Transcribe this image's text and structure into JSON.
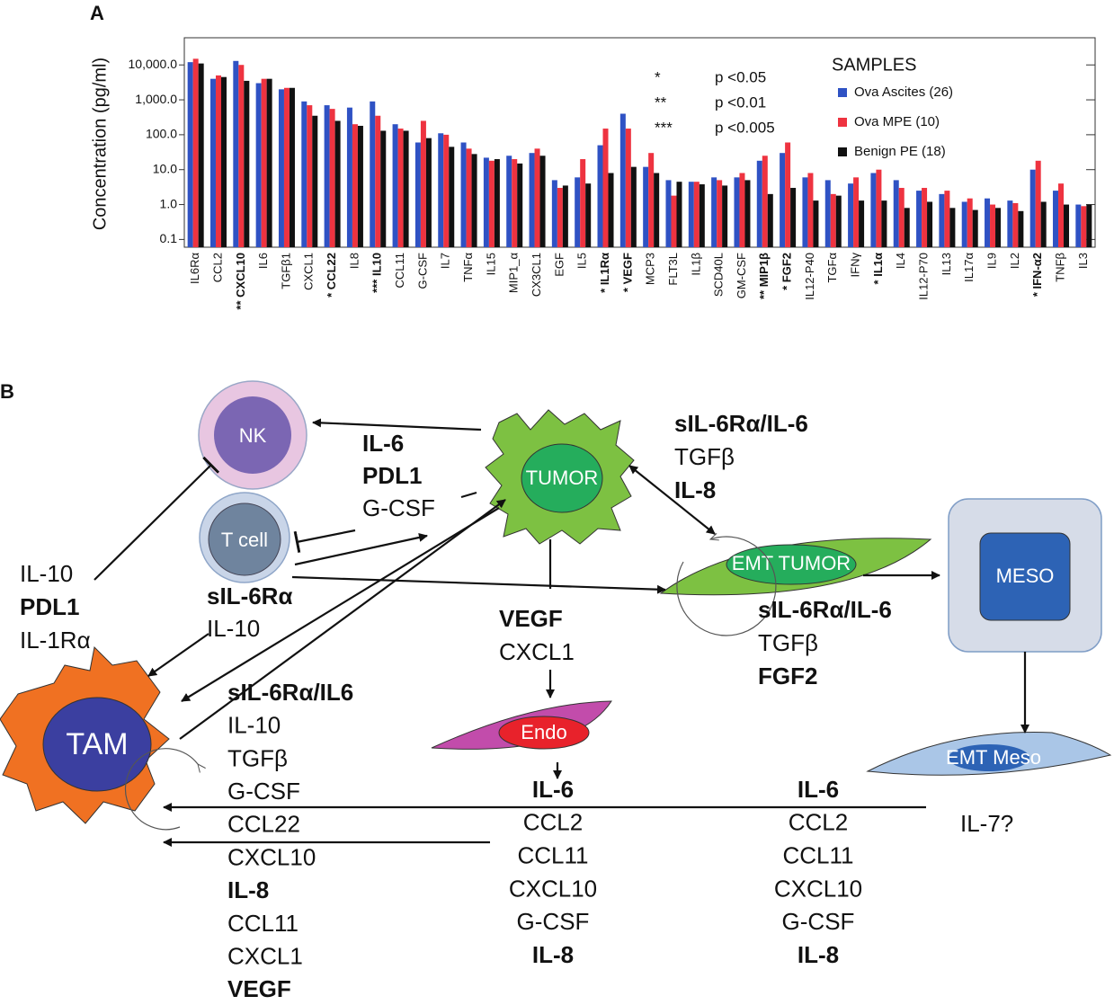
{
  "panel_a": "A",
  "chart_data": {
    "type": "bar",
    "y_label": "Concentration (pg/ml)",
    "log_scale": true,
    "categories": [
      "IL6Rα",
      "CCL2",
      "** CXCL10",
      "IL6",
      "TGFβ1",
      "CXCL1",
      "* CCL22",
      "IL8",
      "*** IL10",
      "CCL11",
      "G-CSF",
      "IL7",
      "TNFα",
      "IL15",
      "MIP1_α",
      "CX3CL1",
      "EGF",
      "IL5",
      "* IL1Rα",
      "* VEGF",
      "MCP3",
      "FLT3L",
      "IL1β",
      "SCD40L",
      "GM-CSF",
      "** MIP1β",
      "* FGF2",
      "IL12-P40",
      "TGFα",
      "IFNγ",
      "* IL1α",
      "IL4",
      "IL12-P70",
      "IL13",
      "IL17α",
      "IL9",
      "IL2",
      "* IFN-α2",
      "TNFβ",
      "IL3"
    ],
    "series": [
      {
        "name": "Ova Ascites (26)",
        "color": "#2f52c4",
        "values": [
          12000,
          4000,
          13000,
          3000,
          2000,
          900,
          700,
          600,
          900,
          200,
          60,
          110,
          60,
          22,
          25,
          30,
          5,
          6,
          50,
          400,
          12,
          5,
          4.5,
          6,
          6,
          18,
          30,
          6,
          5,
          4,
          8,
          5,
          2.5,
          2,
          1.2,
          1.5,
          1.3,
          10,
          2.5,
          1
        ]
      },
      {
        "name": "Ova MPE (10)",
        "color": "#ee3340",
        "values": [
          15000,
          5000,
          10000,
          4000,
          2200,
          700,
          550,
          200,
          350,
          150,
          250,
          100,
          40,
          18,
          20,
          40,
          3,
          20,
          150,
          150,
          30,
          1.8,
          4.5,
          5,
          8,
          25,
          60,
          8,
          2,
          6,
          10,
          3,
          3,
          2.5,
          1.5,
          1,
          1.1,
          18,
          4,
          0.9
        ]
      },
      {
        "name": "Benign PE (18)",
        "color": "#111111",
        "values": [
          11000,
          4500,
          3500,
          4000,
          2200,
          350,
          250,
          180,
          130,
          130,
          80,
          45,
          28,
          20,
          15,
          25,
          3.5,
          4,
          8,
          12,
          8,
          4.5,
          3.8,
          3.5,
          5,
          2,
          3,
          1.3,
          1.8,
          1.3,
          1.3,
          0.8,
          1.2,
          0.8,
          0.7,
          0.8,
          0.65,
          1.2,
          1,
          1
        ]
      }
    ],
    "ylim": [
      0.06,
      60000
    ],
    "yticks": [
      0.1,
      {
        "value": 1,
        "label": "1.0"
      },
      {
        "value": 10,
        "label": "10.0"
      },
      {
        "value": 100,
        "label": "100.0"
      },
      {
        "value": 1000,
        "label": "1,000.0"
      },
      {
        "value": 10000,
        "label": "10,000.0"
      }
    ],
    "legend_title": "SAMPLES",
    "legend_position": "upper right",
    "annotations": [
      "*",
      "p <0.05",
      "**",
      "p <0.01",
      "***",
      "p <0.005"
    ]
  },
  "diagram": {
    "label": "B",
    "cells": {
      "nk": "NK",
      "t_cell": "T cell",
      "tumor": "TUMOR",
      "emt_tumor": "EMT TUMOR",
      "meso": "MESO",
      "tam": "TAM",
      "endo": "Endo",
      "emt_meso": "EMT Meso"
    },
    "groups": [
      {
        "lines": [
          {
            "text": "IL-6",
            "bold": true
          },
          {
            "text": "PDL1",
            "bold": true
          },
          {
            "text": "G-CSF",
            "bold": false
          }
        ]
      },
      {
        "lines": [
          {
            "text": "sIL-6Rα/IL-6",
            "bold": true
          },
          {
            "text": "TGFβ",
            "bold": false
          },
          {
            "text": "IL-8",
            "bold": true
          }
        ]
      },
      {
        "lines": [
          {
            "text": "IL-10",
            "bold": false
          },
          {
            "text": "PDL1",
            "bold": true
          },
          {
            "text": "IL-1Rα",
            "bold": false
          }
        ]
      },
      {
        "lines": [
          {
            "text": "sIL-6Rα",
            "bold": true
          },
          {
            "text": "IL-10",
            "bold": false
          }
        ]
      },
      {
        "lines": [
          {
            "text": "VEGF",
            "bold": true
          },
          {
            "text": "CXCL1",
            "bold": false
          }
        ]
      },
      {
        "lines": [
          {
            "text": "sIL-6Rα/IL-6",
            "bold": true
          },
          {
            "text": "TGFβ",
            "bold": false
          },
          {
            "text": "FGF2",
            "bold": true
          }
        ]
      },
      {
        "lines": [
          {
            "text": "sIL-6Rα/IL6",
            "bold": true
          },
          {
            "text": "IL-10",
            "bold": false
          },
          {
            "text": "TGFβ",
            "bold": false
          },
          {
            "text": "G-CSF",
            "bold": false
          },
          {
            "text": "CCL22",
            "bold": false
          },
          {
            "text": "CXCL10",
            "bold": false
          },
          {
            "text": "IL-8",
            "bold": true
          },
          {
            "text": "CCL11",
            "bold": false
          },
          {
            "text": "CXCL1",
            "bold": false
          },
          {
            "text": "VEGF",
            "bold": true
          }
        ]
      },
      {
        "lines": [
          {
            "text": "IL-6",
            "bold": true
          },
          {
            "text": "CCL2",
            "bold": false
          },
          {
            "text": "CCL11",
            "bold": false
          },
          {
            "text": "CXCL10",
            "bold": false
          },
          {
            "text": "G-CSF",
            "bold": false
          },
          {
            "text": "IL-8",
            "bold": true
          }
        ]
      },
      {
        "lines": [
          {
            "text": "IL-6",
            "bold": true
          },
          {
            "text": "CCL2",
            "bold": false
          },
          {
            "text": "CCL11",
            "bold": false
          },
          {
            "text": "CXCL10",
            "bold": false
          },
          {
            "text": "G-CSF",
            "bold": false
          },
          {
            "text": "IL-8",
            "bold": true
          }
        ]
      },
      {
        "lines": [
          {
            "text": "IL-7?",
            "bold": false
          }
        ]
      }
    ]
  }
}
